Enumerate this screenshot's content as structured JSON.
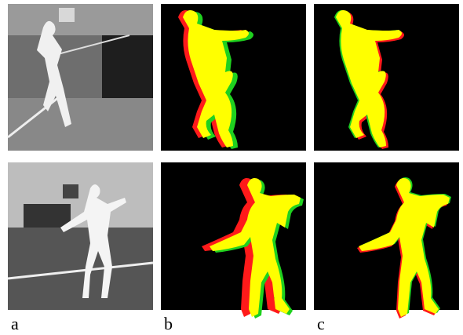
{
  "figure": {
    "panel_labels": [
      "a",
      "b",
      "c"
    ]
  }
}
